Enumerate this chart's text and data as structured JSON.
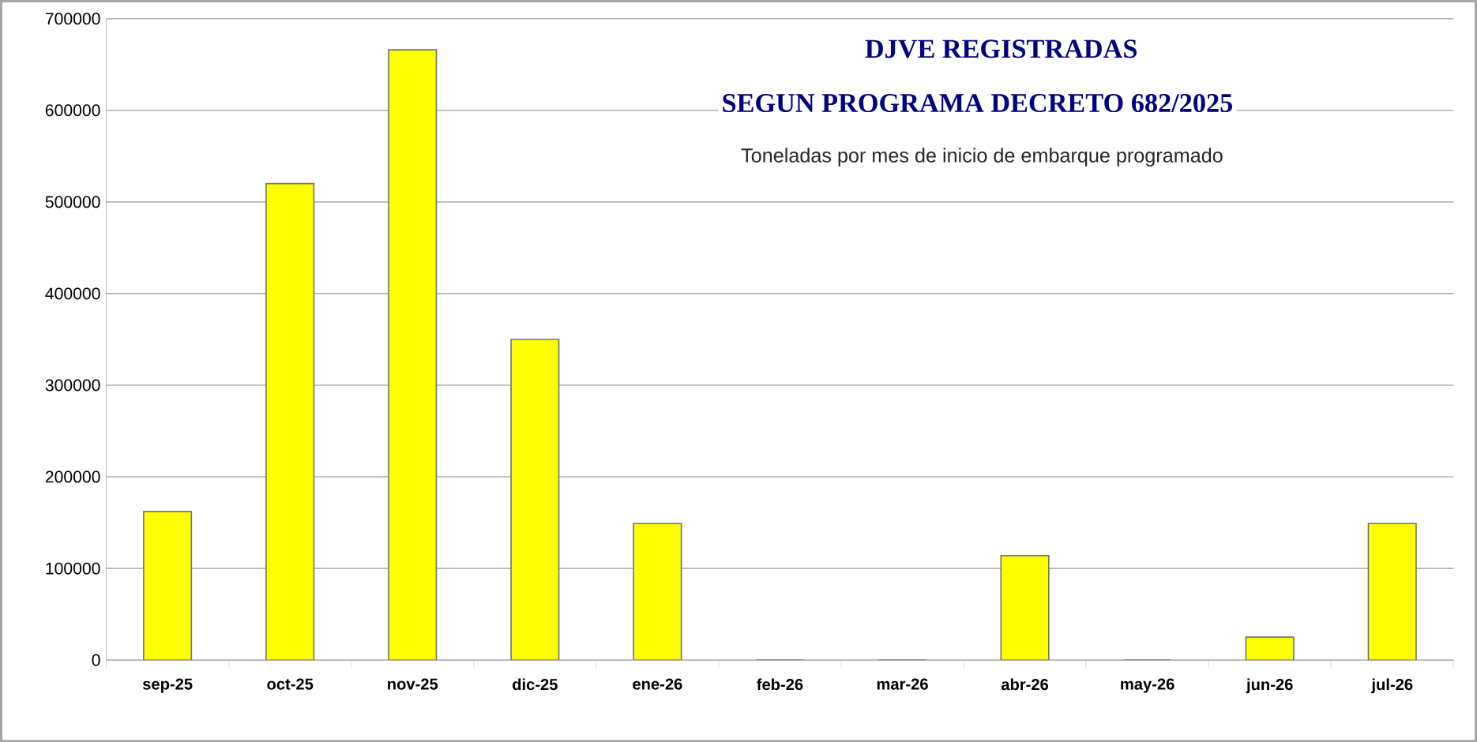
{
  "chart_data": {
    "type": "bar",
    "title": "DJVE REGISTRADAS",
    "subtitle": "SEGUN PROGRAMA DECRETO 682/2025",
    "annotations": [
      "Toneladas por mes de inicio de embarque programado"
    ],
    "categories": [
      "sep-25",
      "oct-25",
      "nov-25",
      "dic-25",
      "ene-26",
      "feb-26",
      "mar-26",
      "abr-26",
      "may-26",
      "jun-26",
      "jul-26"
    ],
    "values": [
      162000,
      520000,
      666000,
      350000,
      149000,
      0,
      0,
      114000,
      0,
      25000,
      149000
    ],
    "color": "#ffff00",
    "ylim": [
      0,
      700000
    ],
    "yticks": [
      0,
      100000,
      200000,
      300000,
      400000,
      500000,
      600000,
      700000
    ],
    "grid": "y"
  }
}
